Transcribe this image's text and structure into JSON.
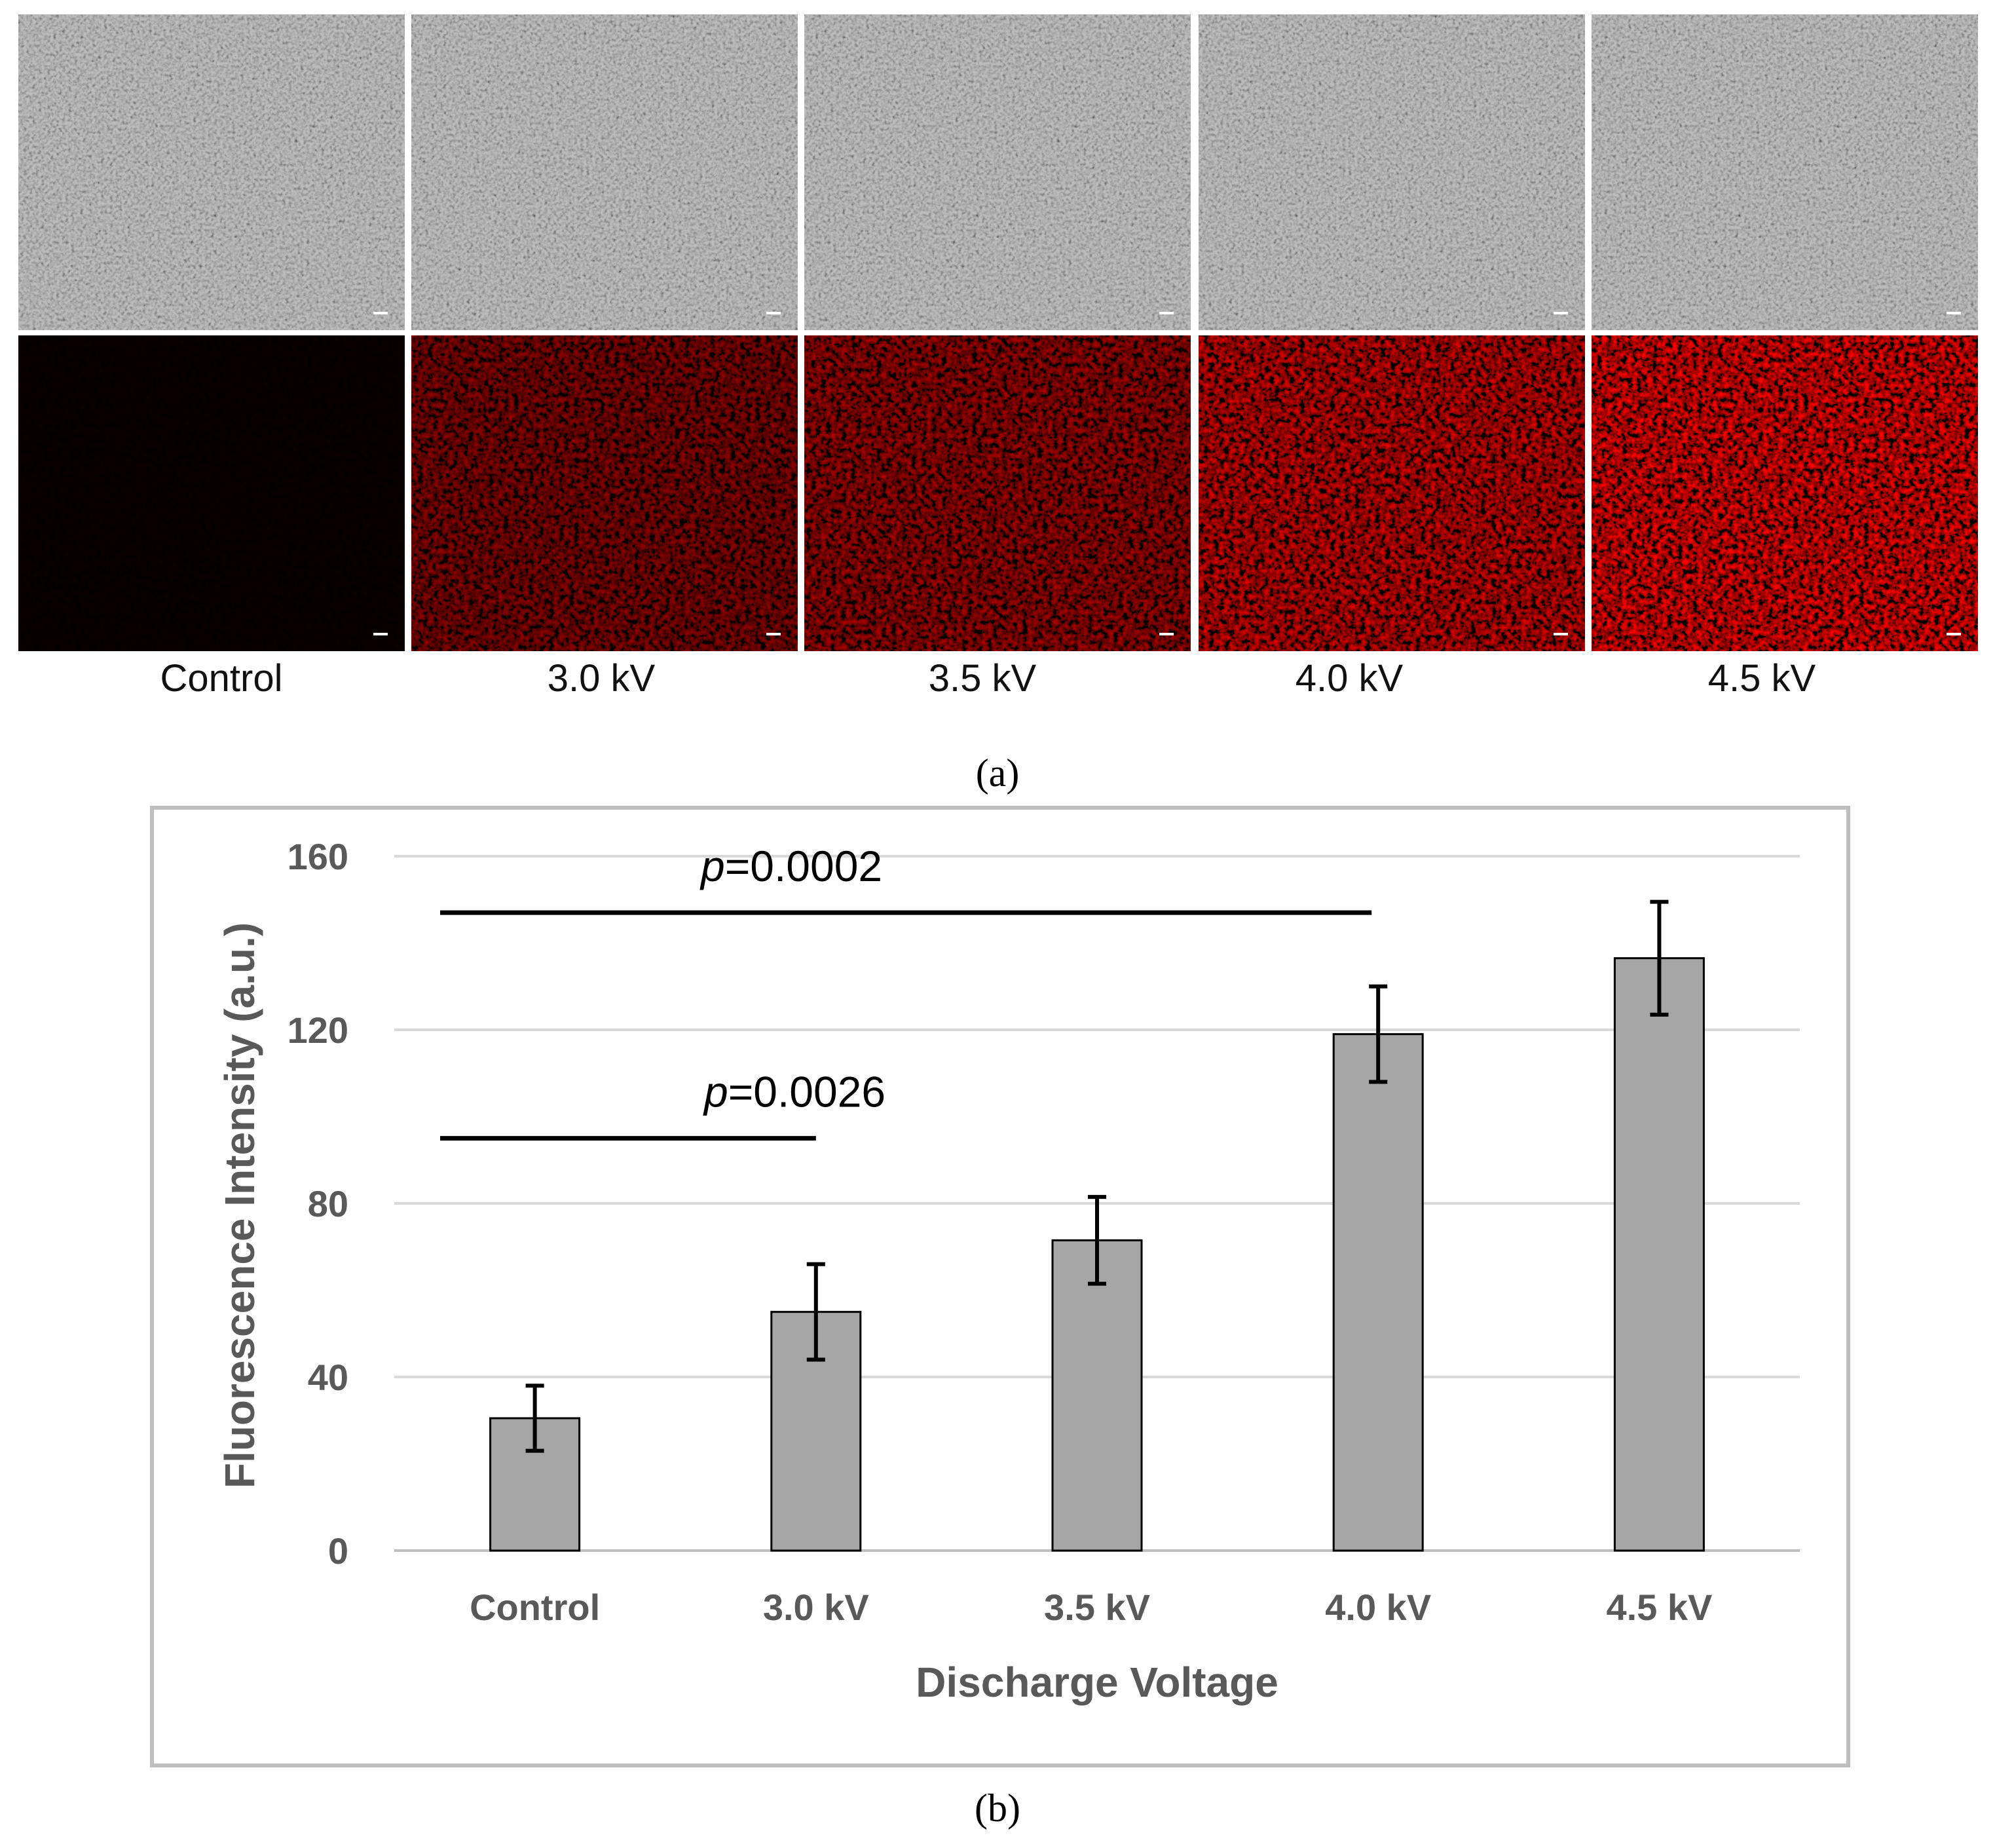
{
  "panel_a": {
    "label": "(a)",
    "conditions": [
      "Control",
      "3.0 kV",
      "3.5 kV",
      "4.0 kV",
      "4.5 kV"
    ],
    "rows": [
      {
        "type": "phase-contrast micrograph",
        "tint": "#6e6e6e"
      },
      {
        "type": "red fluorescence micrograph",
        "tint": "#d01818",
        "relative_intensity": [
          0.02,
          0.55,
          0.65,
          0.85,
          1.0
        ]
      }
    ],
    "scale_bar_color": "#ffffff"
  },
  "panel_b": {
    "label": "(b)",
    "border_color": "#bfbfbf",
    "bar_color": "#a6a6a6",
    "gridline_color": "#d9d9d9"
  },
  "chart_data": {
    "type": "bar",
    "categories": [
      "Control",
      "3.0 kV",
      "3.5 kV",
      "4.0 kV",
      "4.5 kV"
    ],
    "values": [
      30.5,
      55,
      71.5,
      119,
      136.5
    ],
    "error": [
      7.5,
      11,
      10,
      11,
      13
    ],
    "xlabel": "Discharge Voltage",
    "ylabel": "Fluorescence Intensity (a.u.)",
    "ylim": [
      0,
      160
    ],
    "yticks": [
      0,
      40,
      80,
      120,
      160
    ],
    "grid": true,
    "significance": [
      {
        "prefix": "p",
        "text": "=0.0002",
        "from": "Control",
        "to": "4.0 kV",
        "level": 147
      },
      {
        "prefix": "p",
        "text": "=0.0026",
        "from": "Control",
        "to": "3.0 kV",
        "level": 95
      }
    ]
  }
}
